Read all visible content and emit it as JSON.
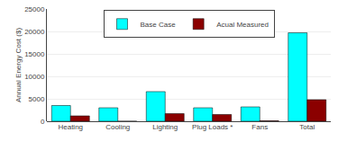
{
  "chart_data": {
    "type": "bar",
    "categories": [
      "Heating",
      "Cooling",
      "Lighting",
      "Plug Loads *",
      "Fans",
      "Total"
    ],
    "series": [
      {
        "name": "Base Case",
        "color": "#00FFFF",
        "values": [
          3500,
          3000,
          6600,
          3000,
          3200,
          19700
        ]
      },
      {
        "name": "Acual Measured",
        "color": "#8B0000",
        "values": [
          1200,
          0,
          1700,
          1500,
          100,
          4800
        ]
      }
    ],
    "ylabel": "Annual Energy Cost ($)",
    "ylim": [
      0,
      25000
    ],
    "yticks": [
      0,
      5000,
      10000,
      15000,
      20000,
      25000
    ],
    "grid": true,
    "legend": "upper center"
  }
}
